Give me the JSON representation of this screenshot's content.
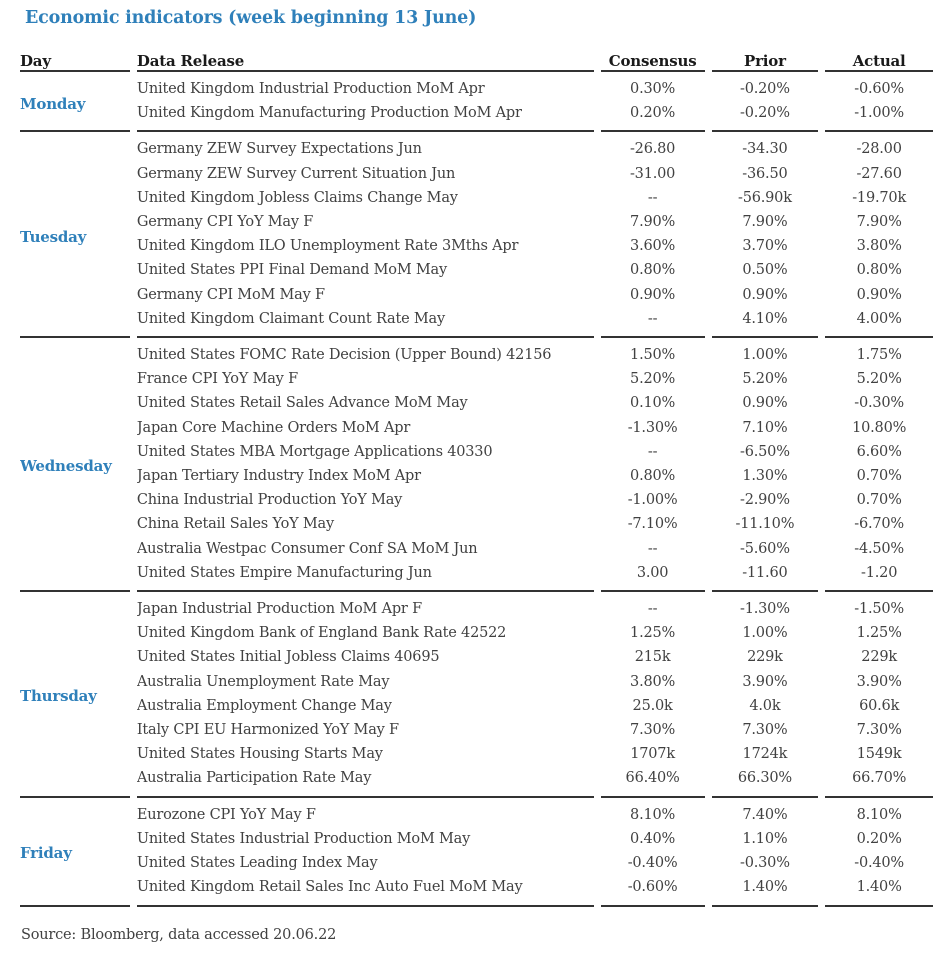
{
  "title": "Economic indicators (week beginning 13 June)",
  "source_note": "Source: Bloomberg, data accessed 20.06.22",
  "colors": {
    "accent_blue": "#2f80ba",
    "header_text": "#1a1a1a",
    "body_text": "#414141",
    "rule": "#333333"
  },
  "table": {
    "headers": [
      "Day",
      "Data Release",
      "Consensus",
      "Prior",
      "Actual"
    ],
    "sections": [
      {
        "day": "Monday",
        "rows": [
          {
            "release": "United Kingdom Industrial Production MoM Apr",
            "consensus": "0.30%",
            "prior": "-0.20%",
            "actual": "-0.60%"
          },
          {
            "release": "United Kingdom Manufacturing Production MoM Apr",
            "consensus": "0.20%",
            "prior": "-0.20%",
            "actual": "-1.00%"
          }
        ]
      },
      {
        "day": "Tuesday",
        "rows": [
          {
            "release": "Germany ZEW Survey Expectations Jun",
            "consensus": "-26.80",
            "prior": "-34.30",
            "actual": "-28.00"
          },
          {
            "release": "Germany ZEW Survey Current Situation Jun",
            "consensus": "-31.00",
            "prior": "-36.50",
            "actual": "-27.60"
          },
          {
            "release": "United Kingdom Jobless Claims Change May",
            "consensus": "--",
            "prior": "-56.90k",
            "actual": "-19.70k"
          },
          {
            "release": "Germany CPI YoY May F",
            "consensus": "7.90%",
            "prior": "7.90%",
            "actual": "7.90%"
          },
          {
            "release": "United Kingdom ILO Unemployment Rate 3Mths Apr",
            "consensus": "3.60%",
            "prior": "3.70%",
            "actual": "3.80%"
          },
          {
            "release": "United States PPI Final Demand MoM May",
            "consensus": "0.80%",
            "prior": "0.50%",
            "actual": "0.80%"
          },
          {
            "release": "Germany CPI MoM May F",
            "consensus": "0.90%",
            "prior": "0.90%",
            "actual": "0.90%"
          },
          {
            "release": "United Kingdom Claimant Count Rate May",
            "consensus": "--",
            "prior": "4.10%",
            "actual": "4.00%"
          }
        ]
      },
      {
        "day": "Wednesday",
        "rows": [
          {
            "release": "United States FOMC Rate Decision (Upper Bound) 42156",
            "consensus": "1.50%",
            "prior": "1.00%",
            "actual": "1.75%"
          },
          {
            "release": "France CPI YoY May F",
            "consensus": "5.20%",
            "prior": "5.20%",
            "actual": "5.20%"
          },
          {
            "release": "United States Retail Sales Advance MoM May",
            "consensus": "0.10%",
            "prior": "0.90%",
            "actual": "-0.30%"
          },
          {
            "release": "Japan Core Machine Orders MoM Apr",
            "consensus": "-1.30%",
            "prior": "7.10%",
            "actual": "10.80%"
          },
          {
            "release": "United States MBA Mortgage Applications 40330",
            "consensus": "--",
            "prior": "-6.50%",
            "actual": "6.60%"
          },
          {
            "release": "Japan Tertiary Industry Index MoM Apr",
            "consensus": "0.80%",
            "prior": "1.30%",
            "actual": "0.70%"
          },
          {
            "release": "China Industrial Production YoY May",
            "consensus": "-1.00%",
            "prior": "-2.90%",
            "actual": "0.70%"
          },
          {
            "release": "China Retail Sales YoY May",
            "consensus": "-7.10%",
            "prior": "-11.10%",
            "actual": "-6.70%"
          },
          {
            "release": "Australia Westpac Consumer Conf SA MoM Jun",
            "consensus": "--",
            "prior": "-5.60%",
            "actual": "-4.50%"
          },
          {
            "release": "United States Empire Manufacturing Jun",
            "consensus": "3.00",
            "prior": "-11.60",
            "actual": "-1.20"
          }
        ]
      },
      {
        "day": "Thursday",
        "rows": [
          {
            "release": "Japan Industrial Production MoM Apr F",
            "consensus": "--",
            "prior": "-1.30%",
            "actual": "-1.50%"
          },
          {
            "release": "United Kingdom Bank of England Bank Rate 42522",
            "consensus": "1.25%",
            "prior": "1.00%",
            "actual": "1.25%"
          },
          {
            "release": "United States Initial Jobless Claims 40695",
            "consensus": "215k",
            "prior": "229k",
            "actual": "229k"
          },
          {
            "release": "Australia Unemployment Rate May",
            "consensus": "3.80%",
            "prior": "3.90%",
            "actual": "3.90%"
          },
          {
            "release": "Australia Employment Change May",
            "consensus": "25.0k",
            "prior": "4.0k",
            "actual": "60.6k"
          },
          {
            "release": "Italy CPI EU Harmonized YoY May F",
            "consensus": "7.30%",
            "prior": "7.30%",
            "actual": "7.30%"
          },
          {
            "release": "United States Housing Starts May",
            "consensus": "1707k",
            "prior": "1724k",
            "actual": "1549k"
          },
          {
            "release": "Australia Participation Rate May",
            "consensus": "66.40%",
            "prior": "66.30%",
            "actual": "66.70%"
          }
        ]
      },
      {
        "day": "Friday",
        "rows": [
          {
            "release": "Eurozone CPI YoY May F",
            "consensus": "8.10%",
            "prior": "7.40%",
            "actual": "8.10%"
          },
          {
            "release": "United States Industrial Production MoM May",
            "consensus": "0.40%",
            "prior": "1.10%",
            "actual": "0.20%"
          },
          {
            "release": "United States Leading Index May",
            "consensus": "-0.40%",
            "prior": "-0.30%",
            "actual": "-0.40%"
          },
          {
            "release": "United Kingdom Retail Sales Inc Auto Fuel MoM May",
            "consensus": "-0.60%",
            "prior": "1.40%",
            "actual": "1.40%"
          }
        ]
      }
    ]
  }
}
